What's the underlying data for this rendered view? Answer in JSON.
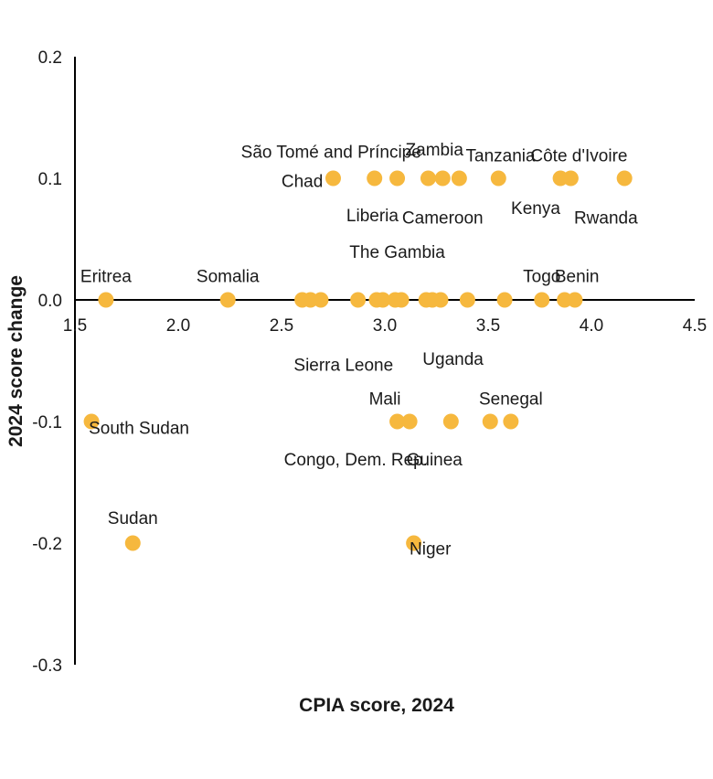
{
  "chart_data": {
    "type": "scatter",
    "xlabel": "CPIA score, 2024",
    "ylabel": "2024 score change",
    "xlim": [
      1.5,
      4.5
    ],
    "ylim": [
      -0.3,
      0.2
    ],
    "x_ticks": [
      "1.5",
      "2.0",
      "2.5",
      "3.0",
      "3.5",
      "4.0",
      "4.5"
    ],
    "y_ticks": [
      "0.2",
      "0.1",
      "0.0",
      "-0.1",
      "-0.2",
      "-0.3"
    ],
    "marker_color": "#F6B83E",
    "axis_color": "#000000",
    "grid": false,
    "legend": "none",
    "points": [
      {
        "x": 2.75,
        "y": 0.1,
        "label": ""
      },
      {
        "x": 2.95,
        "y": 0.1,
        "label": ""
      },
      {
        "x": 3.06,
        "y": 0.1,
        "label": ""
      },
      {
        "x": 3.21,
        "y": 0.1,
        "label": ""
      },
      {
        "x": 3.28,
        "y": 0.1,
        "label": ""
      },
      {
        "x": 3.36,
        "y": 0.1,
        "label": ""
      },
      {
        "x": 3.55,
        "y": 0.1,
        "label": ""
      },
      {
        "x": 3.85,
        "y": 0.1,
        "label": ""
      },
      {
        "x": 3.9,
        "y": 0.1,
        "label": ""
      },
      {
        "x": 4.16,
        "y": 0.1,
        "label": ""
      },
      {
        "x": 1.65,
        "y": 0.0,
        "label": ""
      },
      {
        "x": 2.24,
        "y": 0.0,
        "label": ""
      },
      {
        "x": 2.6,
        "y": 0.0,
        "label": ""
      },
      {
        "x": 2.64,
        "y": 0.0,
        "label": ""
      },
      {
        "x": 2.69,
        "y": 0.0,
        "label": ""
      },
      {
        "x": 2.87,
        "y": 0.0,
        "label": ""
      },
      {
        "x": 2.96,
        "y": 0.0,
        "label": ""
      },
      {
        "x": 2.99,
        "y": 0.0,
        "label": ""
      },
      {
        "x": 3.05,
        "y": 0.0,
        "label": ""
      },
      {
        "x": 3.08,
        "y": 0.0,
        "label": ""
      },
      {
        "x": 3.2,
        "y": 0.0,
        "label": ""
      },
      {
        "x": 3.23,
        "y": 0.0,
        "label": ""
      },
      {
        "x": 3.27,
        "y": 0.0,
        "label": ""
      },
      {
        "x": 3.4,
        "y": 0.0,
        "label": ""
      },
      {
        "x": 3.58,
        "y": 0.0,
        "label": ""
      },
      {
        "x": 3.76,
        "y": 0.0,
        "label": ""
      },
      {
        "x": 3.87,
        "y": 0.0,
        "label": ""
      },
      {
        "x": 3.92,
        "y": 0.0,
        "label": ""
      },
      {
        "x": 1.58,
        "y": -0.1,
        "label": ""
      },
      {
        "x": 3.06,
        "y": -0.1,
        "label": ""
      },
      {
        "x": 3.12,
        "y": -0.1,
        "label": ""
      },
      {
        "x": 3.32,
        "y": -0.1,
        "label": ""
      },
      {
        "x": 3.51,
        "y": -0.1,
        "label": ""
      },
      {
        "x": 3.61,
        "y": -0.1,
        "label": ""
      },
      {
        "x": 1.78,
        "y": -0.2,
        "label": ""
      },
      {
        "x": 3.14,
        "y": -0.2,
        "label": ""
      }
    ],
    "annotations": [
      {
        "text": "São Tomé and Príncipe",
        "x": 2.74,
        "y": 0.122
      },
      {
        "text": "Chad",
        "x": 2.6,
        "y": 0.098
      },
      {
        "text": "Zambia",
        "x": 3.24,
        "y": 0.124
      },
      {
        "text": "Tanzania",
        "x": 3.56,
        "y": 0.119
      },
      {
        "text": "Côte d'Ivoire",
        "x": 3.94,
        "y": 0.119
      },
      {
        "text": "Liberia",
        "x": 2.94,
        "y": 0.07
      },
      {
        "text": "Cameroon",
        "x": 3.28,
        "y": 0.068
      },
      {
        "text": "Kenya",
        "x": 3.73,
        "y": 0.076
      },
      {
        "text": "Rwanda",
        "x": 4.07,
        "y": 0.068
      },
      {
        "text": "The Gambia",
        "x": 3.06,
        "y": 0.04
      },
      {
        "text": "Eritrea",
        "x": 1.65,
        "y": 0.02
      },
      {
        "text": "Somalia",
        "x": 2.24,
        "y": 0.02
      },
      {
        "text": "Togo",
        "x": 3.76,
        "y": 0.02
      },
      {
        "text": "Benin",
        "x": 3.93,
        "y": 0.02
      },
      {
        "text": "Sierra Leone",
        "x": 2.8,
        "y": -0.053
      },
      {
        "text": "Uganda",
        "x": 3.33,
        "y": -0.048
      },
      {
        "text": "Mali",
        "x": 3.0,
        "y": -0.081
      },
      {
        "text": "Senegal",
        "x": 3.61,
        "y": -0.081
      },
      {
        "text": "South Sudan",
        "x": 1.81,
        "y": -0.105
      },
      {
        "text": "Congo, Dem. Rep.",
        "x": 2.86,
        "y": -0.131
      },
      {
        "text": "Guinea",
        "x": 3.24,
        "y": -0.131
      },
      {
        "text": "Sudan",
        "x": 1.78,
        "y": -0.179
      },
      {
        "text": "Niger",
        "x": 3.22,
        "y": -0.204
      }
    ]
  }
}
